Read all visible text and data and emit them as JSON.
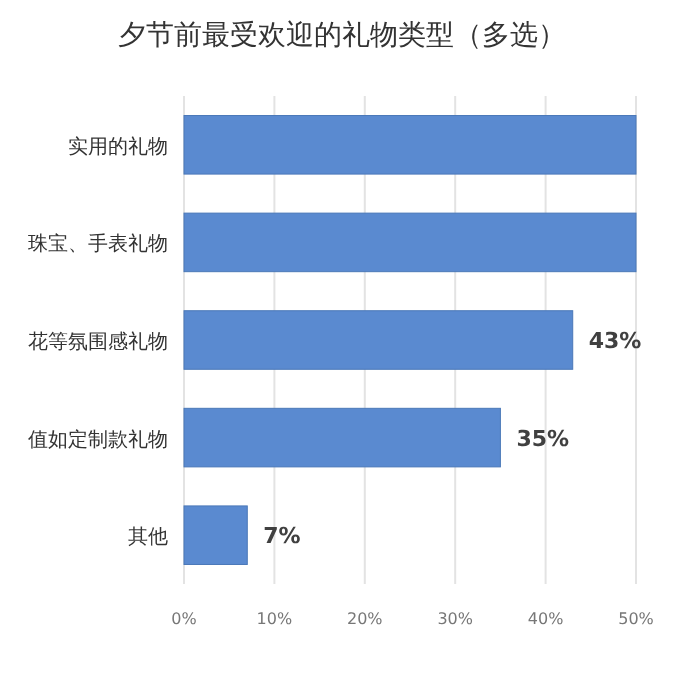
{
  "chart_data": {
    "type": "bar",
    "orientation": "horizontal",
    "title": "夕节前最受欢迎的礼物类型（多选）",
    "categories": [
      "实用的礼物",
      "珠宝、手表礼物",
      "花等氛围感礼物",
      "值如定制款礼物",
      "其他"
    ],
    "values": [
      50,
      50,
      43,
      35,
      7
    ],
    "value_labels": [
      null,
      null,
      "43%",
      "35%",
      "7%"
    ],
    "color": "#5a8ad0",
    "xlim": [
      0,
      50
    ],
    "xticks": [
      {
        "value": 0,
        "label": "0%"
      },
      {
        "value": 10,
        "label": "10%"
      },
      {
        "value": 20,
        "label": "20%"
      },
      {
        "value": 30,
        "label": "30%"
      },
      {
        "value": 40,
        "label": "40%"
      },
      {
        "value": 50,
        "label": "50%"
      }
    ],
    "grid": "x"
  }
}
